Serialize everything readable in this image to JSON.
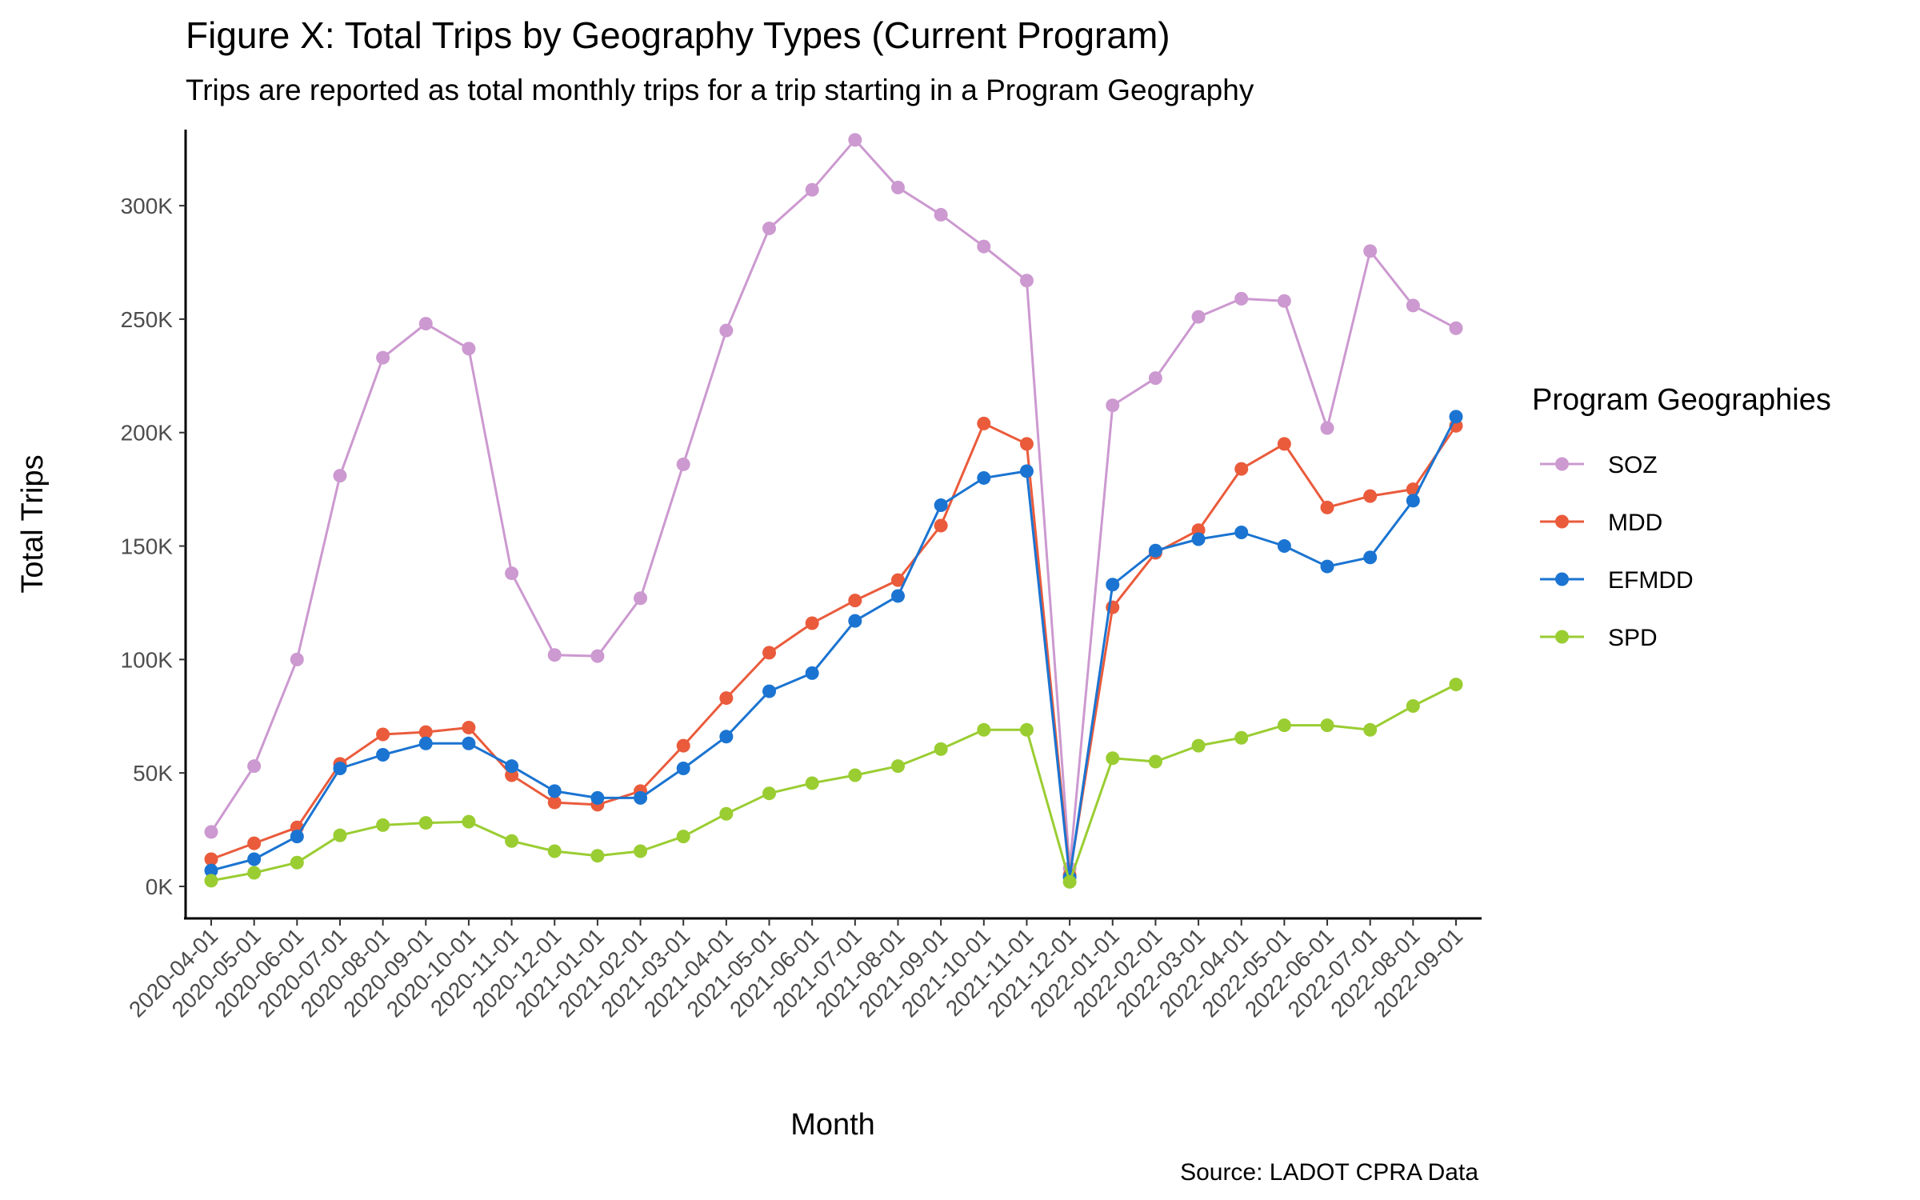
{
  "chart_data": {
    "type": "line",
    "title": "Figure X: Total Trips by Geography Types (Current Program)",
    "subtitle": "Trips are reported as total monthly trips for a trip starting in a Program Geography",
    "xlabel": "Month",
    "ylabel": "Total Trips",
    "caption": "Source: LADOT CPRA Data",
    "legend_title": "Program Geographies",
    "legend_position": "right",
    "grid": false,
    "ylim": [
      -10000,
      330000
    ],
    "yticks": [
      0,
      50000,
      100000,
      150000,
      200000,
      250000,
      300000
    ],
    "ytick_labels": [
      "0K",
      "50K",
      "100K",
      "150K",
      "200K",
      "250K",
      "300K"
    ],
    "x": [
      "2020-04-01",
      "2020-05-01",
      "2020-06-01",
      "2020-07-01",
      "2020-08-01",
      "2020-09-01",
      "2020-10-01",
      "2020-11-01",
      "2020-12-01",
      "2021-01-01",
      "2021-02-01",
      "2021-03-01",
      "2021-04-01",
      "2021-05-01",
      "2021-06-01",
      "2021-07-01",
      "2021-08-01",
      "2021-09-01",
      "2021-10-01",
      "2021-11-01",
      "2021-12-01",
      "2022-01-01",
      "2022-02-01",
      "2022-03-01",
      "2022-04-01",
      "2022-05-01",
      "2022-06-01",
      "2022-07-01",
      "2022-08-01",
      "2022-09-01"
    ],
    "series": [
      {
        "name": "SOZ",
        "color": "#cc99d0",
        "values": [
          24000,
          53000,
          100000,
          181000,
          233000,
          248000,
          237000,
          138000,
          102000,
          101500,
          127000,
          186000,
          245000,
          290000,
          307000,
          329000,
          308000,
          296000,
          282000,
          267000,
          8000,
          212000,
          224000,
          251000,
          259000,
          258000,
          202000,
          280000,
          256000,
          246000
        ]
      },
      {
        "name": "MDD",
        "color": "#ea5b3c",
        "values": [
          12000,
          19000,
          26000,
          54000,
          67000,
          68000,
          70000,
          49000,
          37000,
          36000,
          42000,
          62000,
          83000,
          103000,
          116000,
          126000,
          135000,
          159000,
          204000,
          195000,
          5000,
          123000,
          147000,
          157000,
          184000,
          195000,
          167000,
          172000,
          175000,
          203000
        ]
      },
      {
        "name": "EFMDD",
        "color": "#1b74d1",
        "values": [
          7000,
          12000,
          22000,
          52000,
          58000,
          63000,
          63000,
          53000,
          42000,
          39000,
          39000,
          52000,
          66000,
          86000,
          94000,
          117000,
          128000,
          168000,
          180000,
          183000,
          4000,
          133000,
          148000,
          153000,
          156000,
          150000,
          141000,
          145000,
          170000,
          207000
        ]
      },
      {
        "name": "SPD",
        "color": "#9acd32",
        "values": [
          2500,
          6000,
          10500,
          22500,
          27000,
          28000,
          28500,
          20000,
          15500,
          13500,
          15500,
          22000,
          32000,
          41000,
          45500,
          49000,
          53000,
          60500,
          69000,
          69000,
          2000,
          56500,
          55000,
          62000,
          65500,
          71000,
          71000,
          69000,
          79500,
          89000
        ]
      }
    ]
  }
}
